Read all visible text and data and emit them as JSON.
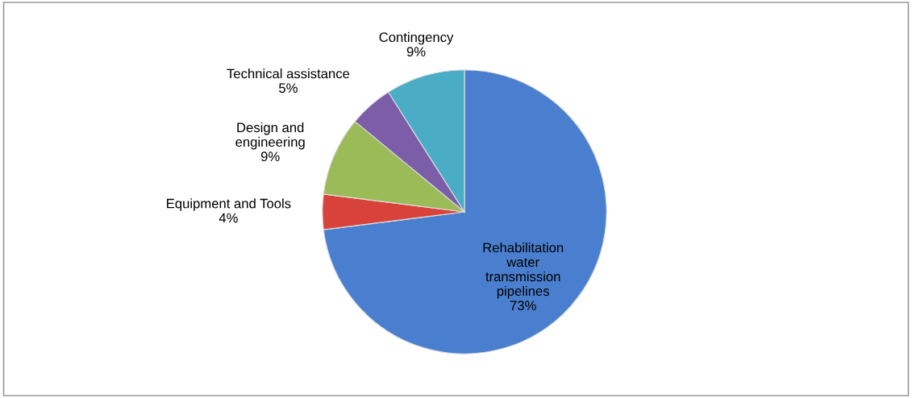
{
  "chart_data": {
    "type": "pie",
    "categories": [
      "Rehabilitation\nwater\ntransmission\npipelines",
      "Equipment and Tools",
      "Design and\nengineering",
      "Technical assistance",
      "Contingency"
    ],
    "values": [
      73,
      4,
      9,
      5,
      9
    ],
    "colors": [
      "#4a7fcf",
      "#d9423a",
      "#9bbb59",
      "#7b5ea7",
      "#4bacc6"
    ],
    "value_labels": [
      "73%",
      "4%",
      "9%",
      "5%",
      "9%"
    ]
  }
}
